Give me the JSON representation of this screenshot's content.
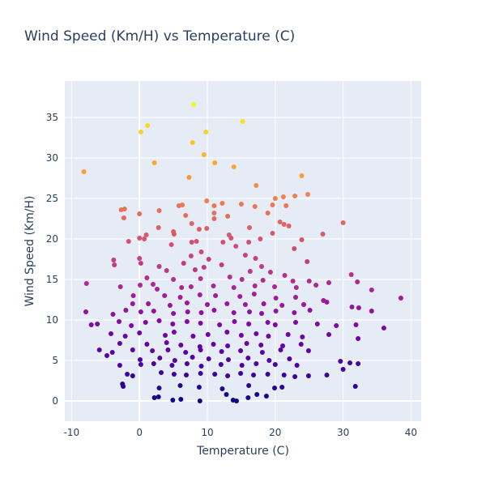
{
  "chart_data": {
    "type": "scatter",
    "title": "Wind Speed (Km/H) vs Temperature (C)",
    "xlabel": "Temperature (C)",
    "ylabel": "Wind Speed (Km/H)",
    "xlim": [
      -11,
      41.5
    ],
    "ylim": [
      -2.5,
      39.5
    ],
    "x_ticks": [
      -10,
      0,
      10,
      20,
      30,
      40
    ],
    "y_ticks": [
      0,
      5,
      10,
      15,
      20,
      25,
      30,
      35
    ],
    "grid": true,
    "colorscale": "plasma",
    "color_by": "y",
    "background_color": "#e5ecf6",
    "points": [
      {
        "x": 8,
        "y": 36.6
      },
      {
        "x": 15.2,
        "y": 34.5
      },
      {
        "x": 1.2,
        "y": 34.0
      },
      {
        "x": 0.2,
        "y": 33.2
      },
      {
        "x": 9.8,
        "y": 33.2
      },
      {
        "x": 7.8,
        "y": 31.9
      },
      {
        "x": 9.5,
        "y": 30.4
      },
      {
        "x": 2.2,
        "y": 29.4
      },
      {
        "x": 11.1,
        "y": 29.4
      },
      {
        "x": 13.9,
        "y": 28.9
      },
      {
        "x": -8.2,
        "y": 28.3
      },
      {
        "x": 7.3,
        "y": 27.6
      },
      {
        "x": 23.9,
        "y": 27.8
      },
      {
        "x": 17.2,
        "y": 26.6
      },
      {
        "x": 24.8,
        "y": 25.5
      },
      {
        "x": 21.2,
        "y": 25.2
      },
      {
        "x": 22.9,
        "y": 25.3
      },
      {
        "x": 20.0,
        "y": 25.0
      },
      {
        "x": 9.9,
        "y": 24.7
      },
      {
        "x": 12.2,
        "y": 24.4
      },
      {
        "x": 15.0,
        "y": 24.3
      },
      {
        "x": 19.6,
        "y": 24.2
      },
      {
        "x": 5.8,
        "y": 24.1
      },
      {
        "x": 6.3,
        "y": 24.2
      },
      {
        "x": 11.0,
        "y": 24.1
      },
      {
        "x": 17.0,
        "y": 24.0
      },
      {
        "x": 21.6,
        "y": 24.1
      },
      {
        "x": -2.7,
        "y": 23.6
      },
      {
        "x": -2.2,
        "y": 23.7
      },
      {
        "x": 2.9,
        "y": 23.5
      },
      {
        "x": 11.0,
        "y": 23.2
      },
      {
        "x": 18.9,
        "y": 23.2
      },
      {
        "x": 0.0,
        "y": 23.1
      },
      {
        "x": 6.8,
        "y": 22.9
      },
      {
        "x": 13.0,
        "y": 22.8
      },
      {
        "x": 11.0,
        "y": 22.5
      },
      {
        "x": -2.3,
        "y": 22.6
      },
      {
        "x": 20.7,
        "y": 22.1
      },
      {
        "x": 30.0,
        "y": 22.0
      },
      {
        "x": 7.7,
        "y": 21.9
      },
      {
        "x": 21.3,
        "y": 21.8
      },
      {
        "x": 22.0,
        "y": 21.6
      },
      {
        "x": 2.8,
        "y": 21.4
      },
      {
        "x": 8.8,
        "y": 21.2
      },
      {
        "x": 9.9,
        "y": 21.3
      },
      {
        "x": 16.2,
        "y": 21.4
      },
      {
        "x": 5.0,
        "y": 20.9
      },
      {
        "x": 5.1,
        "y": 20.6
      },
      {
        "x": 19.6,
        "y": 20.7
      },
      {
        "x": 27.0,
        "y": 20.6
      },
      {
        "x": 1.0,
        "y": 20.5
      },
      {
        "x": 13.2,
        "y": 20.5
      },
      {
        "x": 13.5,
        "y": 20.1
      },
      {
        "x": 17.8,
        "y": 20.0
      },
      {
        "x": 0.0,
        "y": 20.1
      },
      {
        "x": 0.7,
        "y": 20.0
      },
      {
        "x": 23.9,
        "y": 19.9
      },
      {
        "x": 7.7,
        "y": 19.6
      },
      {
        "x": 8.4,
        "y": 19.7
      },
      {
        "x": 12.3,
        "y": 19.6
      },
      {
        "x": 16.1,
        "y": 19.6
      },
      {
        "x": -1.6,
        "y": 19.7
      },
      {
        "x": 4.7,
        "y": 19.3
      },
      {
        "x": 14.2,
        "y": 19.1
      },
      {
        "x": 22.8,
        "y": 18.8
      },
      {
        "x": 9.1,
        "y": 18.4
      },
      {
        "x": 15.6,
        "y": 18.0
      },
      {
        "x": 7.6,
        "y": 17.9
      },
      {
        "x": 17.1,
        "y": 17.6
      },
      {
        "x": -3.8,
        "y": 17.4
      },
      {
        "x": 0.0,
        "y": 17.6
      },
      {
        "x": 10.2,
        "y": 17.5
      },
      {
        "x": 24.7,
        "y": 17.2
      },
      {
        "x": 6.5,
        "y": 17.0
      },
      {
        "x": 9.5,
        "y": 16.5
      },
      {
        "x": -3.7,
        "y": 16.8
      },
      {
        "x": 0.2,
        "y": 17.0
      },
      {
        "x": 2.9,
        "y": 16.6
      },
      {
        "x": 12.1,
        "y": 16.8
      },
      {
        "x": 18.0,
        "y": 16.6
      },
      {
        "x": 4.0,
        "y": 16.1
      },
      {
        "x": 8.2,
        "y": 16.2
      },
      {
        "x": 16.3,
        "y": 16.0
      },
      {
        "x": 19.3,
        "y": 15.9
      },
      {
        "x": 21.4,
        "y": 15.5
      },
      {
        "x": 31.2,
        "y": 15.6
      },
      {
        "x": 1.1,
        "y": 15.2
      },
      {
        "x": 5.0,
        "y": 15.0
      },
      {
        "x": 9.0,
        "y": 15.1
      },
      {
        "x": 13.3,
        "y": 15.3
      },
      {
        "x": 15.1,
        "y": 15.0
      },
      {
        "x": 18.2,
        "y": 14.9
      },
      {
        "x": 22.6,
        "y": 14.8
      },
      {
        "x": 25.0,
        "y": 14.8
      },
      {
        "x": 32.1,
        "y": 14.7
      },
      {
        "x": -7.8,
        "y": 14.5
      },
      {
        "x": -2.8,
        "y": 14.1
      },
      {
        "x": 0.1,
        "y": 14.3
      },
      {
        "x": 2.0,
        "y": 14.4
      },
      {
        "x": 2.6,
        "y": 13.8
      },
      {
        "x": 6.2,
        "y": 14.0
      },
      {
        "x": 7.6,
        "y": 14.1
      },
      {
        "x": 10.9,
        "y": 14.2
      },
      {
        "x": 13.9,
        "y": 14.0
      },
      {
        "x": 17.0,
        "y": 14.2
      },
      {
        "x": 19.9,
        "y": 14.1
      },
      {
        "x": 23.1,
        "y": 14.0
      },
      {
        "x": 26.0,
        "y": 14.3
      },
      {
        "x": 27.9,
        "y": 14.6
      },
      {
        "x": 34.2,
        "y": 13.7
      },
      {
        "x": -0.9,
        "y": 13.0
      },
      {
        "x": 3.7,
        "y": 13.0
      },
      {
        "x": 6.0,
        "y": 12.8
      },
      {
        "x": 8.9,
        "y": 13.1
      },
      {
        "x": 11.2,
        "y": 13.0
      },
      {
        "x": 14.8,
        "y": 12.9
      },
      {
        "x": 16.9,
        "y": 13.2
      },
      {
        "x": 20.1,
        "y": 12.7
      },
      {
        "x": 23.0,
        "y": 12.8
      },
      {
        "x": 27.1,
        "y": 12.4
      },
      {
        "x": 38.5,
        "y": 12.7
      },
      {
        "x": -1.0,
        "y": 12.0
      },
      {
        "x": 1.3,
        "y": 12.0
      },
      {
        "x": 4.5,
        "y": 11.8
      },
      {
        "x": 7.0,
        "y": 12.1
      },
      {
        "x": 10.0,
        "y": 11.9
      },
      {
        "x": 12.9,
        "y": 12.0
      },
      {
        "x": 15.6,
        "y": 11.9
      },
      {
        "x": 18.3,
        "y": 12.0
      },
      {
        "x": 21.0,
        "y": 11.8
      },
      {
        "x": 24.2,
        "y": 11.9
      },
      {
        "x": 27.6,
        "y": 12.2
      },
      {
        "x": 31.3,
        "y": 11.6
      },
      {
        "x": 32.3,
        "y": 11.5
      },
      {
        "x": -7.9,
        "y": 11.0
      },
      {
        "x": -3.9,
        "y": 10.7
      },
      {
        "x": -2.0,
        "y": 11.2
      },
      {
        "x": 0.2,
        "y": 11.0
      },
      {
        "x": 2.1,
        "y": 11.1
      },
      {
        "x": 5.0,
        "y": 10.8
      },
      {
        "x": 7.1,
        "y": 11.0
      },
      {
        "x": 9.1,
        "y": 10.9
      },
      {
        "x": 11.0,
        "y": 11.2
      },
      {
        "x": 13.9,
        "y": 10.9
      },
      {
        "x": 16.2,
        "y": 11.0
      },
      {
        "x": 18.0,
        "y": 10.8
      },
      {
        "x": 20.1,
        "y": 11.1
      },
      {
        "x": 22.8,
        "y": 10.9
      },
      {
        "x": 25.1,
        "y": 11.2
      },
      {
        "x": 34.2,
        "y": 11.1
      },
      {
        "x": -7.1,
        "y": 9.4
      },
      {
        "x": -6.2,
        "y": 9.5
      },
      {
        "x": -3.0,
        "y": 9.8
      },
      {
        "x": -1.2,
        "y": 9.3
      },
      {
        "x": 0.9,
        "y": 9.7
      },
      {
        "x": 2.9,
        "y": 9.9
      },
      {
        "x": 4.9,
        "y": 9.5
      },
      {
        "x": 7.0,
        "y": 9.8
      },
      {
        "x": 9.0,
        "y": 9.6
      },
      {
        "x": 11.8,
        "y": 9.4
      },
      {
        "x": 14.0,
        "y": 9.8
      },
      {
        "x": 16.1,
        "y": 9.5
      },
      {
        "x": 18.9,
        "y": 9.7
      },
      {
        "x": 20.0,
        "y": 9.4
      },
      {
        "x": 23.0,
        "y": 9.7
      },
      {
        "x": 26.2,
        "y": 9.5
      },
      {
        "x": 29.0,
        "y": 9.3
      },
      {
        "x": 31.9,
        "y": 9.4
      },
      {
        "x": 36.0,
        "y": 9.0
      },
      {
        "x": -4.2,
        "y": 8.3
      },
      {
        "x": -2.1,
        "y": 8.0
      },
      {
        "x": 0.0,
        "y": 8.4
      },
      {
        "x": 3.8,
        "y": 8.1
      },
      {
        "x": 5.1,
        "y": 8.5
      },
      {
        "x": 7.9,
        "y": 8.0
      },
      {
        "x": 10.1,
        "y": 8.2
      },
      {
        "x": 12.9,
        "y": 8.5
      },
      {
        "x": 15.0,
        "y": 8.1
      },
      {
        "x": 17.2,
        "y": 8.3
      },
      {
        "x": 19.0,
        "y": 8.0
      },
      {
        "x": 21.9,
        "y": 8.2
      },
      {
        "x": 24.0,
        "y": 7.9
      },
      {
        "x": 27.9,
        "y": 8.2
      },
      {
        "x": 32.2,
        "y": 7.7
      },
      {
        "x": -2.9,
        "y": 7.1
      },
      {
        "x": 1.1,
        "y": 7.0
      },
      {
        "x": 4.0,
        "y": 7.2
      },
      {
        "x": 6.1,
        "y": 6.9
      },
      {
        "x": 8.9,
        "y": 6.7
      },
      {
        "x": 10.9,
        "y": 7.0
      },
      {
        "x": 13.0,
        "y": 6.8
      },
      {
        "x": 15.8,
        "y": 7.1
      },
      {
        "x": 17.9,
        "y": 6.9
      },
      {
        "x": 21.1,
        "y": 6.8
      },
      {
        "x": 23.8,
        "y": 7.0
      },
      {
        "x": -5.9,
        "y": 6.3
      },
      {
        "x": -4.0,
        "y": 6.0
      },
      {
        "x": -1.0,
        "y": 6.3
      },
      {
        "x": 1.9,
        "y": 6.2
      },
      {
        "x": 4.2,
        "y": 6.3
      },
      {
        "x": 6.8,
        "y": 6.0
      },
      {
        "x": 9.0,
        "y": 6.3
      },
      {
        "x": 12.1,
        "y": 6.1
      },
      {
        "x": 14.9,
        "y": 6.2
      },
      {
        "x": 18.1,
        "y": 6.0
      },
      {
        "x": 20.8,
        "y": 6.3
      },
      {
        "x": 24.9,
        "y": 6.2
      },
      {
        "x": -4.8,
        "y": 5.6
      },
      {
        "x": 0.1,
        "y": 5.1
      },
      {
        "x": 3.0,
        "y": 5.3
      },
      {
        "x": 5.2,
        "y": 5.0
      },
      {
        "x": 7.8,
        "y": 5.4
      },
      {
        "x": 10.2,
        "y": 5.2
      },
      {
        "x": 13.1,
        "y": 5.1
      },
      {
        "x": 16.0,
        "y": 5.3
      },
      {
        "x": 19.1,
        "y": 5.0
      },
      {
        "x": 22.1,
        "y": 5.2
      },
      {
        "x": 29.6,
        "y": 4.9
      },
      {
        "x": -2.9,
        "y": 4.4
      },
      {
        "x": 0.2,
        "y": 4.5
      },
      {
        "x": 2.1,
        "y": 4.6
      },
      {
        "x": 4.8,
        "y": 4.4
      },
      {
        "x": 7.0,
        "y": 4.6
      },
      {
        "x": 9.1,
        "y": 4.3
      },
      {
        "x": 12.0,
        "y": 4.5
      },
      {
        "x": 15.1,
        "y": 4.4
      },
      {
        "x": 17.2,
        "y": 4.6
      },
      {
        "x": 20.0,
        "y": 4.5
      },
      {
        "x": 23.2,
        "y": 4.4
      },
      {
        "x": 31.0,
        "y": 4.7
      },
      {
        "x": 32.2,
        "y": 4.6
      },
      {
        "x": -1.8,
        "y": 3.3
      },
      {
        "x": -1.0,
        "y": 3.1
      },
      {
        "x": 3.2,
        "y": 3.5
      },
      {
        "x": 5.1,
        "y": 3.3
      },
      {
        "x": 6.9,
        "y": 3.2
      },
      {
        "x": 9.0,
        "y": 3.4
      },
      {
        "x": 11.1,
        "y": 3.3
      },
      {
        "x": 13.0,
        "y": 3.1
      },
      {
        "x": 14.9,
        "y": 3.4
      },
      {
        "x": 16.8,
        "y": 3.2
      },
      {
        "x": 18.9,
        "y": 3.3
      },
      {
        "x": 21.3,
        "y": 3.2
      },
      {
        "x": 22.9,
        "y": 3.0
      },
      {
        "x": 24.9,
        "y": 3.1
      },
      {
        "x": 27.6,
        "y": 3.2
      },
      {
        "x": 30.0,
        "y": 3.9
      },
      {
        "x": -2.5,
        "y": 2.1
      },
      {
        "x": -2.4,
        "y": 1.8
      },
      {
        "x": 2.9,
        "y": 1.6
      },
      {
        "x": 6.0,
        "y": 1.9
      },
      {
        "x": 8.8,
        "y": 1.7
      },
      {
        "x": 12.2,
        "y": 1.5
      },
      {
        "x": 16.1,
        "y": 1.9
      },
      {
        "x": 19.9,
        "y": 1.6
      },
      {
        "x": 21.0,
        "y": 1.7
      },
      {
        "x": 31.8,
        "y": 1.8
      },
      {
        "x": 2.2,
        "y": 0.4
      },
      {
        "x": 2.8,
        "y": 0.5
      },
      {
        "x": 4.9,
        "y": 0.1
      },
      {
        "x": 6.1,
        "y": 0.2
      },
      {
        "x": 8.9,
        "y": 0.0
      },
      {
        "x": 12.8,
        "y": 0.8
      },
      {
        "x": 13.8,
        "y": 0.1
      },
      {
        "x": 14.3,
        "y": 0.0
      },
      {
        "x": 16.0,
        "y": 0.4
      },
      {
        "x": 17.3,
        "y": 0.8
      },
      {
        "x": 18.7,
        "y": 0.6
      }
    ]
  }
}
